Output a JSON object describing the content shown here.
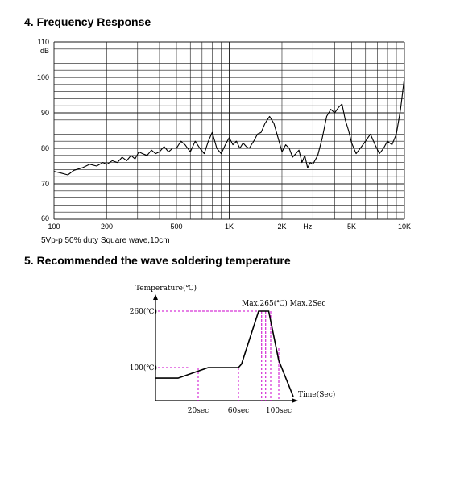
{
  "sections": {
    "frequency_response": {
      "heading": "4. Frequency Response",
      "caption": "5Vp-p 50% duty Square wave,10cm"
    },
    "wave_soldering": {
      "heading": "5. Recommended the wave soldering temperature"
    }
  },
  "colors": {
    "grid": "#1a1a1a",
    "curve": "#000000",
    "guide": "#cc00cc"
  },
  "chart_data": [
    {
      "type": "line",
      "title": "",
      "xlabel": "",
      "ylabel": "dB",
      "xscale": "log",
      "xlim": [
        100,
        10000
      ],
      "ylim": [
        60,
        110
      ],
      "y_ticks": [
        "110",
        "100",
        "90",
        "80",
        "70",
        "60"
      ],
      "y_unit_label": "dB",
      "x_ticks": [
        {
          "label": "100",
          "value": 100
        },
        {
          "label": "200",
          "value": 200
        },
        {
          "label": "500",
          "value": 500
        },
        {
          "label": "1K",
          "value": 1000
        },
        {
          "label": "2K",
          "value": 2000
        },
        {
          "label": "Hz",
          "value": 2800
        },
        {
          "label": "5K",
          "value": 5000
        },
        {
          "label": "10K",
          "value": 10000
        }
      ],
      "grid": true,
      "series": [
        {
          "x": [
            100,
            110,
            120,
            130,
            145,
            160,
            175,
            190,
            200,
            215,
            230,
            245,
            260,
            275,
            290,
            305,
            320,
            340,
            360,
            380,
            400,
            425,
            450,
            475,
            500,
            530,
            560,
            600,
            640,
            680,
            720,
            760,
            800,
            850,
            900,
            950,
            1000,
            1050,
            1100,
            1150,
            1200,
            1250,
            1300,
            1380,
            1450,
            1520,
            1600,
            1700,
            1800,
            1900,
            2000,
            2100,
            2200,
            2300,
            2400,
            2500,
            2600,
            2700,
            2800,
            2900,
            3000,
            3200,
            3400,
            3600,
            3800,
            4000,
            4200,
            4400,
            4600,
            4800,
            5000,
            5300,
            5600,
            6000,
            6400,
            6800,
            7200,
            7600,
            8000,
            8500,
            9000,
            9500,
            10000
          ],
          "y": [
            73.5,
            73,
            72.5,
            73.8,
            74.5,
            75.5,
            75,
            76,
            75.5,
            76.5,
            76,
            77.5,
            76.5,
            78,
            77,
            79,
            78.5,
            78,
            79.5,
            78.5,
            79,
            80.5,
            79,
            80,
            80,
            82,
            81,
            79,
            82,
            80,
            78.5,
            82,
            84.5,
            80,
            78.5,
            81,
            83,
            81,
            82,
            80,
            81.5,
            80.5,
            80,
            82,
            84,
            84.5,
            87,
            89,
            87,
            83,
            79,
            81,
            80,
            77.5,
            78.5,
            79.5,
            76,
            78,
            74.5,
            76,
            75.5,
            78,
            83,
            89,
            91,
            90,
            91.5,
            92.5,
            88,
            85,
            81.5,
            78.5,
            80,
            82,
            84,
            81,
            78.5,
            80,
            82,
            81,
            84,
            91,
            100
          ]
        }
      ]
    },
    {
      "type": "line",
      "title": "",
      "ylabel": "Temperature(℃)",
      "xlabel": "Time(Sec)",
      "y_marks": [
        {
          "label": "260(℃)",
          "value": 260
        },
        {
          "label": "100(℃)",
          "value": 100
        }
      ],
      "peak_label": "Max.265(℃) Max.2Sec",
      "x_marks": [
        {
          "label": "20sec",
          "value": 20
        },
        {
          "label": "60sec",
          "value": 60
        },
        {
          "label": "100sec",
          "value": 100
        }
      ],
      "grid": false,
      "series": [
        {
          "x": [
            -40,
            0,
            20,
            30,
            60,
            63,
            80,
            90,
            100
          ],
          "y": [
            70,
            70,
            90,
            100,
            100,
            110,
            260,
            260,
            120
          ]
        }
      ]
    }
  ]
}
